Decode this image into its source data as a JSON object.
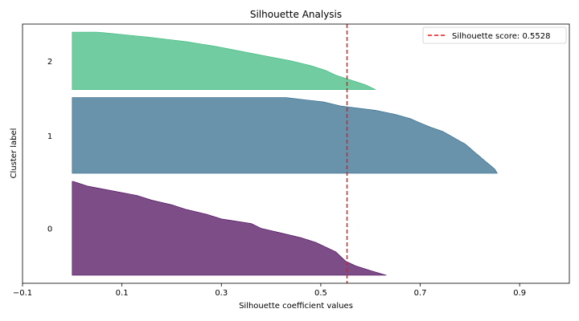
{
  "chart_data": {
    "type": "area",
    "title": "Silhouette Analysis",
    "xlabel": "Silhouette coefficient values",
    "ylabel": "Cluster label",
    "xlim": [
      -0.1,
      1.0
    ],
    "xticks": [
      -0.1,
      0.1,
      0.3,
      0.5,
      0.7,
      0.9
    ],
    "xtick_labels": [
      "−0.1",
      "0.1",
      "0.3",
      "0.5",
      "0.7",
      "0.9"
    ],
    "grid": false,
    "legend_position": "top-right",
    "legend_label": "Silhouette score: 0.5528",
    "reference_line": {
      "x": 0.5528,
      "color": "#e41a1c",
      "style": "dashed"
    },
    "clusters": [
      {
        "label": "0",
        "color": "#440154",
        "alpha": 0.7,
        "size": 98,
        "values": [
          0.632,
          0.6,
          0.57,
          0.55,
          0.54,
          0.53,
          0.51,
          0.49,
          0.46,
          0.42,
          0.38,
          0.36,
          0.3,
          0.27,
          0.23,
          0.2,
          0.16,
          0.13,
          0.08,
          0.03,
          0.002
        ]
      },
      {
        "label": "1",
        "color": "#2a6588",
        "alpha": 0.7,
        "size": 79,
        "values": [
          0.855,
          0.85,
          0.84,
          0.83,
          0.82,
          0.81,
          0.8,
          0.79,
          0.775,
          0.76,
          0.745,
          0.72,
          0.7,
          0.68,
          0.65,
          0.61,
          0.54,
          0.505,
          0.43
        ]
      },
      {
        "label": "2",
        "color": "#35b779",
        "alpha": 0.7,
        "size": 60,
        "values": [
          0.61,
          0.59,
          0.56,
          0.53,
          0.51,
          0.48,
          0.44,
          0.39,
          0.34,
          0.29,
          0.23,
          0.15,
          0.05
        ]
      }
    ]
  }
}
